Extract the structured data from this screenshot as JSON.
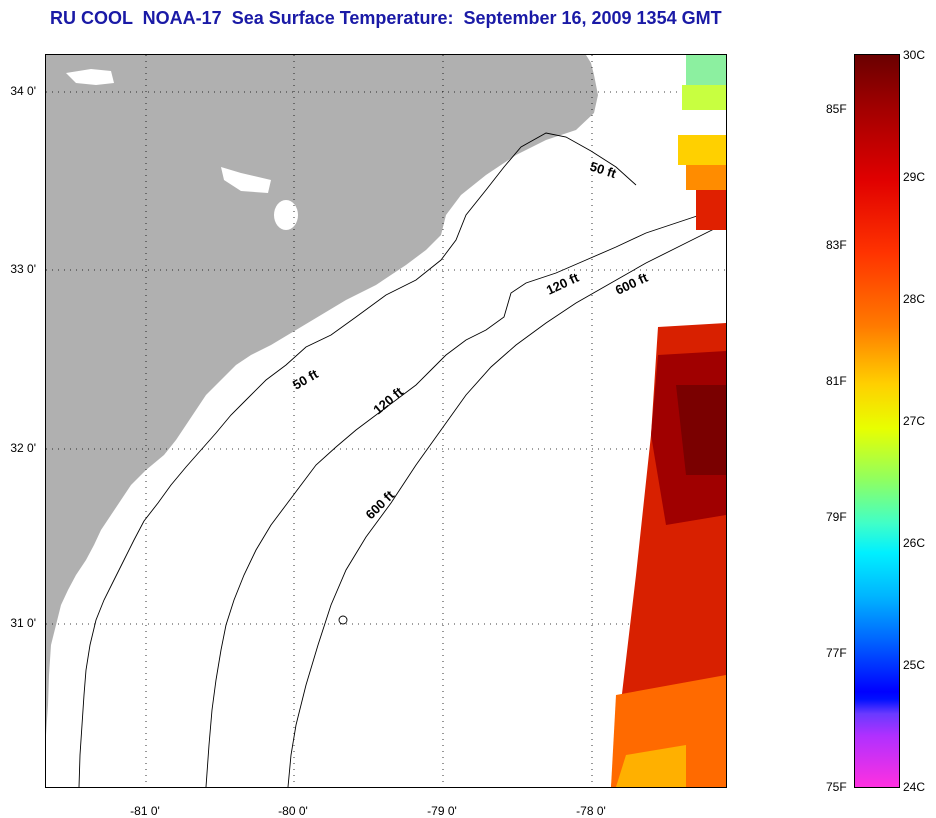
{
  "title": "RU COOL  NOAA-17  Sea Surface Temperature:  September 16, 2009 1354 GMT",
  "lat_labels": [
    "34 0'",
    "33 0'",
    "32 0'",
    "31 0'"
  ],
  "lon_labels": [
    "-81 0'",
    "-80 0'",
    "-79 0'",
    "-78 0'"
  ],
  "contours": {
    "c50a": "50 ft",
    "c50b": "50 ft",
    "c120a": "120 ft",
    "c120b": "120 ft",
    "c600a": "600 ft",
    "c600b": "600 ft"
  },
  "colorbar": {
    "fahrenheit": [
      "85F",
      "83F",
      "81F",
      "79F",
      "77F",
      "75F"
    ],
    "celsius": [
      "30C",
      "29C",
      "28C",
      "27C",
      "26C",
      "25C",
      "24C"
    ]
  },
  "colors": {
    "title": "#1a1aa6",
    "land": "#b0b0b0",
    "sst_hot": "#a00000",
    "sst_warm": "#ff3300"
  }
}
